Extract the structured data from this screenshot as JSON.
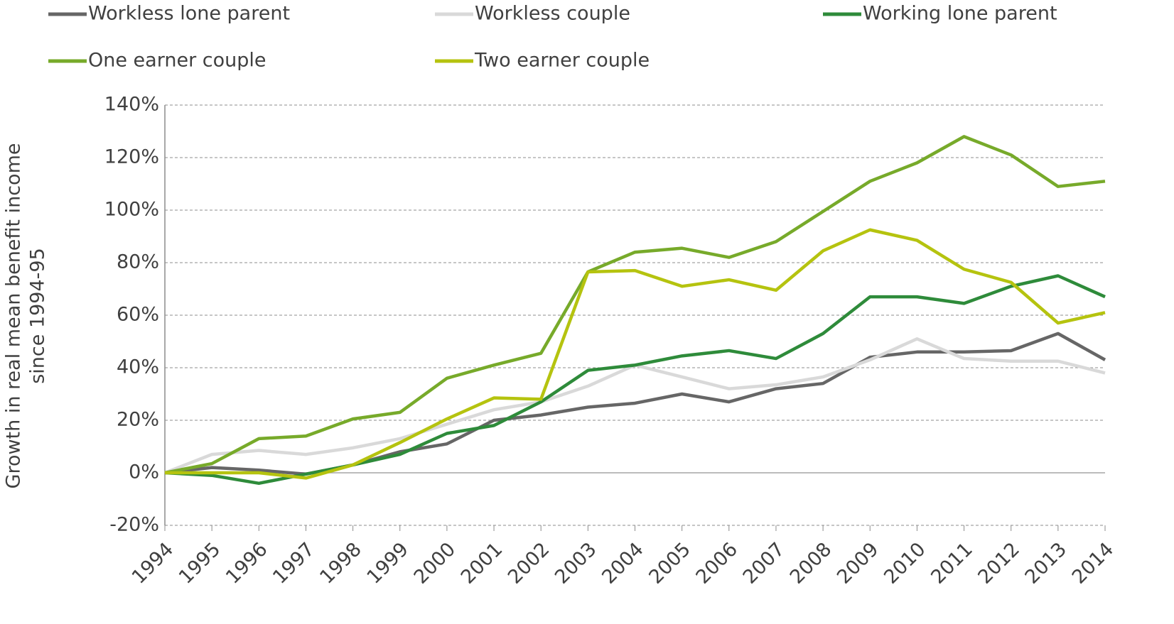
{
  "chart_data": {
    "type": "line",
    "y_label": [
      "Growth in real mean benefit income",
      "since 1994-95"
    ],
    "categories": [
      "1994",
      "1995",
      "1996",
      "1997",
      "1998",
      "1999",
      "2000",
      "2001",
      "2002",
      "2003",
      "2004",
      "2005",
      "2006",
      "2007",
      "2008",
      "2009",
      "2010",
      "2011",
      "2012",
      "2013",
      "2014"
    ],
    "series": [
      {
        "name": "Workless lone parent",
        "color": "#666666",
        "values": [
          0,
          2,
          1,
          -0.5,
          3,
          8,
          11,
          20,
          22,
          25,
          26.5,
          30,
          27,
          32,
          34,
          44,
          46,
          46,
          46.5,
          53,
          43
        ]
      },
      {
        "name": "Workless couple",
        "color": "#d9d9d9",
        "values": [
          0,
          7,
          8.5,
          7,
          9.5,
          13,
          18.5,
          24,
          27,
          33,
          41,
          36.5,
          32,
          33.5,
          36.5,
          43,
          51,
          43.5,
          42.5,
          42.5,
          38
        ]
      },
      {
        "name": "Working lone parent",
        "color": "#2e8b3a",
        "values": [
          0,
          -1,
          -4,
          -0.5,
          3,
          7,
          15,
          18,
          27,
          39,
          41,
          44.5,
          46.5,
          43.5,
          53,
          67,
          67,
          64.5,
          71,
          75,
          67
        ]
      },
      {
        "name": "One earner couple",
        "color": "#77aa2a",
        "values": [
          0,
          3.5,
          13,
          14,
          20.5,
          23,
          36,
          41,
          45.5,
          76.5,
          84,
          85.5,
          82,
          88,
          99.5,
          111,
          118,
          128,
          121,
          109,
          111
        ]
      },
      {
        "name": "Two earner couple",
        "color": "#b5c30f",
        "values": [
          0,
          0,
          0,
          -2,
          3,
          11.5,
          20.5,
          28.5,
          28,
          76.5,
          77,
          71,
          73.5,
          69.5,
          84.5,
          92.5,
          88.5,
          77.5,
          72.5,
          57,
          61
        ]
      }
    ],
    "ylim": [
      -20,
      140
    ],
    "yticks": [
      {
        "value": -20,
        "label": "-20%"
      },
      {
        "value": 0,
        "label": "0%"
      },
      {
        "value": 20,
        "label": "20%"
      },
      {
        "value": 40,
        "label": "40%"
      },
      {
        "value": 60,
        "label": "60%"
      },
      {
        "value": 80,
        "label": "80%"
      },
      {
        "value": 100,
        "label": "100%"
      },
      {
        "value": 120,
        "label": "120%"
      },
      {
        "value": 140,
        "label": "140%"
      }
    ],
    "grid": true
  }
}
